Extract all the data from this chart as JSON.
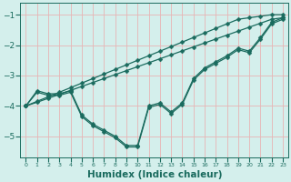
{
  "xlabel": "Humidex (Indice chaleur)",
  "ylabel": "",
  "xlim": [
    -0.5,
    23.5
  ],
  "ylim": [
    -5.7,
    -0.6
  ],
  "background_color": "#d4efec",
  "grid_color": "#e8b4b4",
  "line_color": "#1a6b5e",
  "marker": "D",
  "markersize": 2.5,
  "linewidth": 0.9,
  "series": [
    {
      "x": [
        0,
        1,
        2,
        3,
        4,
        5,
        6,
        7,
        8,
        9,
        10,
        11,
        12,
        13,
        14,
        15,
        16,
        17,
        18,
        19,
        20,
        21,
        22,
        23
      ],
      "y": [
        -4.0,
        -3.85,
        -3.7,
        -3.55,
        -3.4,
        -3.25,
        -3.1,
        -2.95,
        -2.8,
        -2.65,
        -2.5,
        -2.35,
        -2.2,
        -2.05,
        -1.9,
        -1.75,
        -1.6,
        -1.45,
        -1.3,
        -1.15,
        -1.1,
        -1.05,
        -1.0,
        -1.0
      ]
    },
    {
      "x": [
        0,
        1,
        2,
        3,
        4,
        5,
        6,
        7,
        8,
        9,
        10,
        11,
        12,
        13,
        14,
        15,
        16,
        17,
        18,
        19,
        20,
        21,
        22,
        23
      ],
      "y": [
        -4.0,
        -3.88,
        -3.75,
        -3.62,
        -3.49,
        -3.36,
        -3.23,
        -3.1,
        -2.97,
        -2.84,
        -2.71,
        -2.58,
        -2.45,
        -2.32,
        -2.19,
        -2.06,
        -1.93,
        -1.8,
        -1.67,
        -1.54,
        -1.41,
        -1.28,
        -1.15,
        -1.1
      ]
    },
    {
      "x": [
        0,
        1,
        2,
        3,
        4,
        5,
        6,
        7,
        8,
        9,
        10,
        11,
        12,
        13,
        14,
        15,
        16,
        17,
        18,
        19,
        20,
        21,
        22,
        23
      ],
      "y": [
        -4.0,
        -3.5,
        -3.6,
        -3.6,
        -3.5,
        -4.3,
        -4.6,
        -4.8,
        -5.0,
        -5.3,
        -5.3,
        -4.0,
        -3.9,
        -4.2,
        -3.9,
        -3.1,
        -2.75,
        -2.55,
        -2.35,
        -2.1,
        -2.2,
        -1.75,
        -1.25,
        -1.1
      ]
    },
    {
      "x": [
        0,
        1,
        2,
        3,
        4,
        5,
        6,
        7,
        8,
        9,
        10,
        11,
        12,
        13,
        14,
        15,
        16,
        17,
        18,
        19,
        20,
        21,
        22,
        23
      ],
      "y": [
        -4.0,
        -3.55,
        -3.65,
        -3.65,
        -3.55,
        -4.35,
        -4.65,
        -4.85,
        -5.05,
        -5.35,
        -5.35,
        -4.05,
        -3.95,
        -4.25,
        -3.95,
        -3.15,
        -2.8,
        -2.6,
        -2.4,
        -2.15,
        -2.25,
        -1.8,
        -1.3,
        -1.15
      ]
    }
  ],
  "xticks": [
    0,
    1,
    2,
    3,
    4,
    5,
    6,
    7,
    8,
    9,
    10,
    11,
    12,
    13,
    14,
    15,
    16,
    17,
    18,
    19,
    20,
    21,
    22,
    23
  ],
  "yticks": [
    -5,
    -4,
    -3,
    -2,
    -1
  ],
  "xtick_fontsize": 4.5,
  "ytick_fontsize": 6.5,
  "xlabel_fontsize": 7.5
}
